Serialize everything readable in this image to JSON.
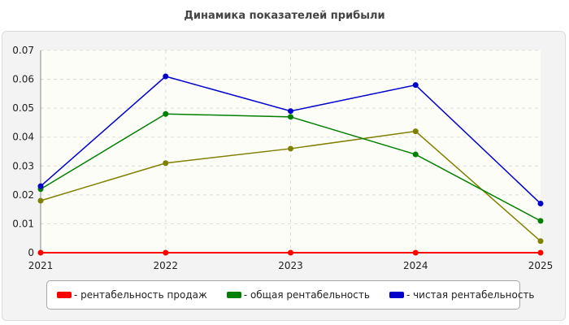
{
  "chart_data": {
    "type": "line",
    "title": "Динамика показателей прибыли",
    "xlabel": "",
    "ylabel": "",
    "categories": [
      "2021",
      "2022",
      "2023",
      "2024",
      "2025"
    ],
    "ylim": [
      0,
      0.07
    ],
    "yticks": [
      "0",
      "0.01",
      "0.02",
      "0.03",
      "0.04",
      "0.05",
      "0.06",
      "0.07"
    ],
    "grid": true,
    "legend_position": "bottom",
    "series": [
      {
        "name": "- рентабельность продаж",
        "color": "#ff0000",
        "values": [
          0,
          0,
          0,
          0,
          0
        ]
      },
      {
        "name": "- общая рентабельность",
        "color": "#008000",
        "values": [
          0.022,
          0.048,
          0.047,
          0.034,
          0.011
        ]
      },
      {
        "name": "- чистая рентабельность",
        "color": "#0000cc",
        "values": [
          0.023,
          0.061,
          0.049,
          0.058,
          0.017
        ]
      },
      {
        "name": "",
        "color": "#808000",
        "values": [
          0.018,
          0.031,
          0.036,
          0.042,
          0.004
        ]
      }
    ]
  }
}
